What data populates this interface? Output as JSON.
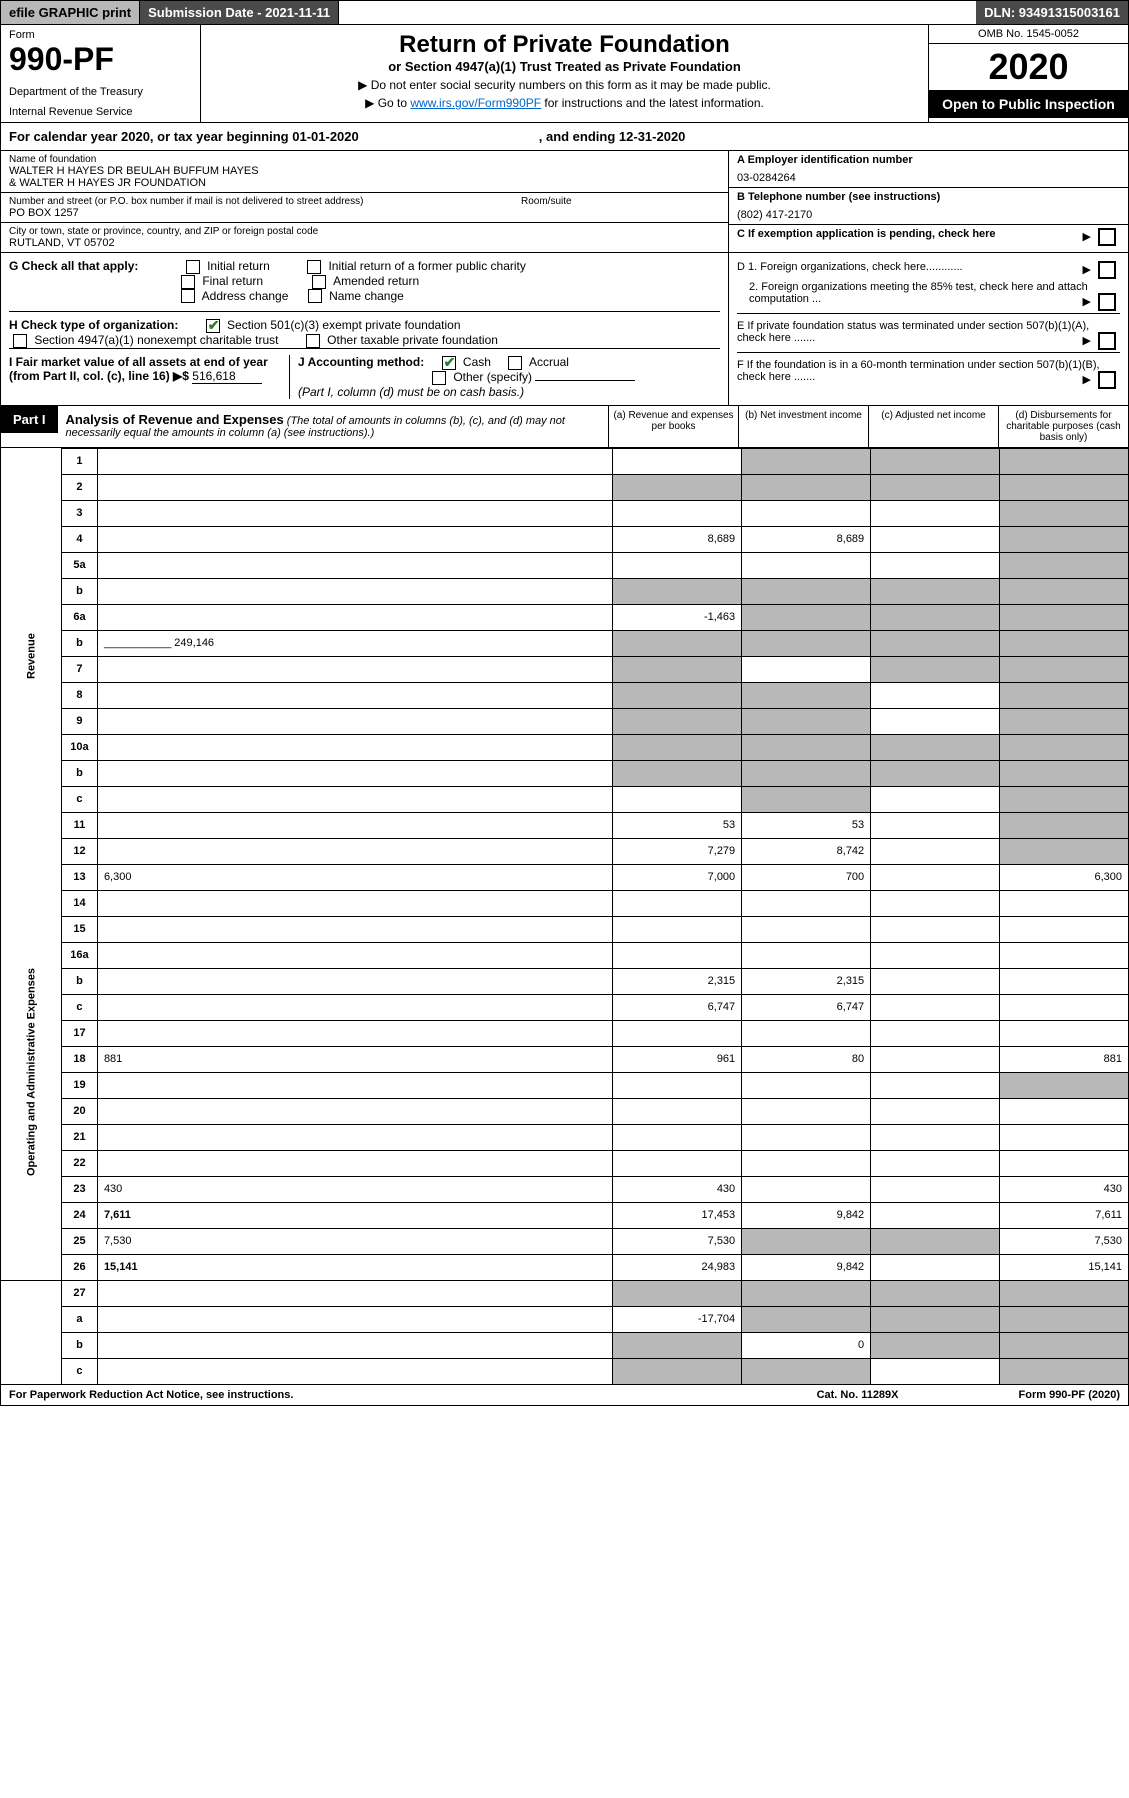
{
  "topbar": {
    "efile": "efile GRAPHIC print",
    "submission": "Submission Date - 2021-11-11",
    "dln": "DLN: 93491315003161"
  },
  "header": {
    "form_label": "Form",
    "form_number": "990-PF",
    "dept1": "Department of the Treasury",
    "dept2": "Internal Revenue Service",
    "title": "Return of Private Foundation",
    "subtitle": "or Section 4947(a)(1) Trust Treated as Private Foundation",
    "instr1": "▶ Do not enter social security numbers on this form as it may be made public.",
    "instr2_pre": "▶ Go to ",
    "instr2_link": "www.irs.gov/Form990PF",
    "instr2_post": " for instructions and the latest information.",
    "omb": "OMB No. 1545-0052",
    "year": "2020",
    "open_public": "Open to Public Inspection"
  },
  "calyear": {
    "text_pre": "For calendar year 2020, or tax year beginning ",
    "begin": "01-01-2020",
    "text_mid": ", and ending ",
    "end": "12-31-2020"
  },
  "entity": {
    "name_label": "Name of foundation",
    "name1": "WALTER H HAYES DR BEULAH BUFFUM HAYES",
    "name2": "& WALTER H HAYES JR FOUNDATION",
    "addr_label": "Number and street (or P.O. box number if mail is not delivered to street address)",
    "addr": "PO BOX 1257",
    "room_label": "Room/suite",
    "city_label": "City or town, state or province, country, and ZIP or foreign postal code",
    "city": "RUTLAND, VT  05702",
    "ein_label": "A Employer identification number",
    "ein": "03-0284264",
    "phone_label": "B Telephone number (see instructions)",
    "phone": "(802) 417-2170",
    "c_label": "C If exemption application is pending, check here",
    "d1": "D 1. Foreign organizations, check here............",
    "d2": "2. Foreign organizations meeting the 85% test, check here and attach computation ...",
    "e": "E  If private foundation status was terminated under section 507(b)(1)(A), check here .......",
    "f": "F  If the foundation is in a 60-month termination under section 507(b)(1)(B), check here ......."
  },
  "checks": {
    "g_label": "G Check all that apply:",
    "g_opts": [
      "Initial return",
      "Initial return of a former public charity",
      "Final return",
      "Amended return",
      "Address change",
      "Name change"
    ],
    "h_label": "H Check type of organization:",
    "h_opts": [
      "Section 501(c)(3) exempt private foundation",
      "Section 4947(a)(1) nonexempt charitable trust",
      "Other taxable private foundation"
    ],
    "i_label": "I Fair market value of all assets at end of year (from Part II, col. (c), line 16) ▶$",
    "i_val": "516,618",
    "j_label": "J Accounting method:",
    "j_opts": [
      "Cash",
      "Accrual"
    ],
    "j_other": "Other (specify)",
    "j_note": "(Part I, column (d) must be on cash basis.)"
  },
  "part1": {
    "label": "Part I",
    "title": "Analysis of Revenue and Expenses",
    "note": "(The total of amounts in columns (b), (c), and (d) may not necessarily equal the amounts in column (a) (see instructions).)",
    "cols": {
      "a": "(a) Revenue and expenses per books",
      "b": "(b) Net investment income",
      "c": "(c) Adjusted net income",
      "d": "(d) Disbursements for charitable purposes (cash basis only)"
    }
  },
  "sections": {
    "revenue": "Revenue",
    "opex": "Operating and Administrative Expenses"
  },
  "rows": [
    {
      "n": "1",
      "d": "",
      "a": "",
      "b": "",
      "c": "",
      "shade_b": true,
      "shade_c": true,
      "shade_d": true
    },
    {
      "n": "2",
      "d": "",
      "a": "",
      "b": "",
      "c": "",
      "shade_a": true,
      "shade_b": true,
      "shade_c": true,
      "shade_d": true,
      "bold_not": true
    },
    {
      "n": "3",
      "d": "",
      "a": "",
      "b": "",
      "c": "",
      "shade_d": true
    },
    {
      "n": "4",
      "d": "",
      "a": "8,689",
      "b": "8,689",
      "c": "",
      "shade_d": true
    },
    {
      "n": "5a",
      "d": "",
      "a": "",
      "b": "",
      "c": "",
      "shade_d": true
    },
    {
      "n": "b",
      "d": "",
      "a": "",
      "b": "",
      "c": "",
      "shade_a": true,
      "shade_b": true,
      "shade_c": true,
      "shade_d": true,
      "inline_box": true
    },
    {
      "n": "6a",
      "d": "",
      "a": "-1,463",
      "b": "",
      "c": "",
      "shade_b": true,
      "shade_c": true,
      "shade_d": true
    },
    {
      "n": "b",
      "d": "",
      "a": "",
      "b": "",
      "c": "",
      "shade_a": true,
      "shade_b": true,
      "shade_c": true,
      "shade_d": true,
      "inline_val": "249,146"
    },
    {
      "n": "7",
      "d": "",
      "a": "",
      "b": "",
      "c": "",
      "shade_a": true,
      "shade_c": true,
      "shade_d": true
    },
    {
      "n": "8",
      "d": "",
      "a": "",
      "b": "",
      "c": "",
      "shade_a": true,
      "shade_b": true,
      "shade_d": true
    },
    {
      "n": "9",
      "d": "",
      "a": "",
      "b": "",
      "c": "",
      "shade_a": true,
      "shade_b": true,
      "shade_d": true
    },
    {
      "n": "10a",
      "d": "",
      "a": "",
      "b": "",
      "c": "",
      "shade_a": true,
      "shade_b": true,
      "shade_c": true,
      "shade_d": true,
      "inline_box": true
    },
    {
      "n": "b",
      "d": "",
      "a": "",
      "b": "",
      "c": "",
      "shade_a": true,
      "shade_b": true,
      "shade_c": true,
      "shade_d": true,
      "inline_box": true
    },
    {
      "n": "c",
      "d": "",
      "a": "",
      "b": "",
      "c": "",
      "shade_b": true,
      "shade_d": true
    },
    {
      "n": "11",
      "d": "",
      "a": "53",
      "b": "53",
      "c": "",
      "shade_d": true
    },
    {
      "n": "12",
      "d": "",
      "a": "7,279",
      "b": "8,742",
      "c": "",
      "shade_d": true,
      "bold": true
    }
  ],
  "rows_opex": [
    {
      "n": "13",
      "d": "6,300",
      "a": "7,000",
      "b": "700",
      "c": ""
    },
    {
      "n": "14",
      "d": "",
      "a": "",
      "b": "",
      "c": ""
    },
    {
      "n": "15",
      "d": "",
      "a": "",
      "b": "",
      "c": ""
    },
    {
      "n": "16a",
      "d": "",
      "a": "",
      "b": "",
      "c": ""
    },
    {
      "n": "b",
      "d": "",
      "a": "2,315",
      "b": "2,315",
      "c": ""
    },
    {
      "n": "c",
      "d": "",
      "a": "6,747",
      "b": "6,747",
      "c": ""
    },
    {
      "n": "17",
      "d": "",
      "a": "",
      "b": "",
      "c": ""
    },
    {
      "n": "18",
      "d": "881",
      "a": "961",
      "b": "80",
      "c": ""
    },
    {
      "n": "19",
      "d": "",
      "a": "",
      "b": "",
      "c": "",
      "shade_d": true
    },
    {
      "n": "20",
      "d": "",
      "a": "",
      "b": "",
      "c": ""
    },
    {
      "n": "21",
      "d": "",
      "a": "",
      "b": "",
      "c": ""
    },
    {
      "n": "22",
      "d": "",
      "a": "",
      "b": "",
      "c": ""
    },
    {
      "n": "23",
      "d": "430",
      "a": "430",
      "b": "",
      "c": "",
      "icon": true
    },
    {
      "n": "24",
      "d": "7,611",
      "a": "17,453",
      "b": "9,842",
      "c": "",
      "bold": true
    },
    {
      "n": "25",
      "d": "7,530",
      "a": "7,530",
      "b": "",
      "c": "",
      "shade_b": true,
      "shade_c": true
    },
    {
      "n": "26",
      "d": "15,141",
      "a": "24,983",
      "b": "9,842",
      "c": "",
      "bold": true
    }
  ],
  "rows_net": [
    {
      "n": "27",
      "d": "",
      "a": "",
      "b": "",
      "c": "",
      "shade_a": true,
      "shade_b": true,
      "shade_c": true,
      "shade_d": true
    },
    {
      "n": "a",
      "d": "",
      "a": "-17,704",
      "b": "",
      "c": "",
      "shade_b": true,
      "shade_c": true,
      "shade_d": true,
      "bold": true
    },
    {
      "n": "b",
      "d": "",
      "a": "",
      "b": "0",
      "c": "",
      "shade_a": true,
      "shade_c": true,
      "shade_d": true,
      "bold": true
    },
    {
      "n": "c",
      "d": "",
      "a": "",
      "b": "",
      "c": "",
      "shade_a": true,
      "shade_b": true,
      "shade_d": true,
      "bold": true
    }
  ],
  "footer": {
    "left": "For Paperwork Reduction Act Notice, see instructions.",
    "center": "Cat. No. 11289X",
    "right": "Form 990-PF (2020)"
  }
}
